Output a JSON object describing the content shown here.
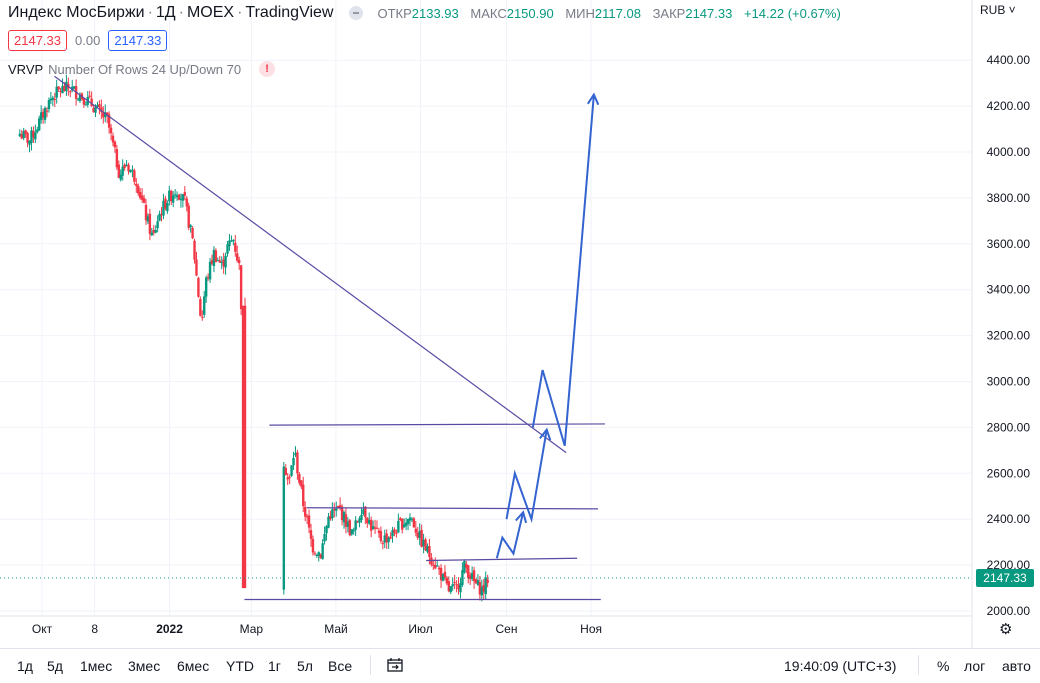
{
  "header": {
    "symbol": "Индекс МосБиржи",
    "interval": "1Д",
    "exchange": "MOEX",
    "source": "TradingView",
    "open_label": "ОТКР",
    "open": "2133.93",
    "high_label": "МАКС",
    "high": "2150.90",
    "low_label": "МИН",
    "low": "2117.08",
    "close_label": "ЗАКР",
    "close": "2147.33",
    "change": "+14.22 (+0.67%)",
    "price_box_sell": "2147.33",
    "spread": "0.00",
    "price_box_buy": "2147.33"
  },
  "indicator": {
    "name": "VRVP",
    "params": "Number Of Rows 24 Up/Down 70",
    "warning": "!"
  },
  "currency_menu": "RUB ˅",
  "last_price_label": "2147.33",
  "chart_data": {
    "type": "candlestick",
    "ylim": [
      2000,
      4500
    ],
    "y_ticks": [
      "2000.00",
      "2200.00",
      "2400.00",
      "2600.00",
      "2800.00",
      "3000.00",
      "3200.00",
      "3400.00",
      "3600.00",
      "3800.00",
      "4000.00",
      "4200.00",
      "4400.00"
    ],
    "x_ticks": [
      "Окт",
      "8",
      "2022",
      "Мар",
      "Май",
      "Июл",
      "Сен",
      "Ноя"
    ],
    "x_tick_dates": [
      "2021-10-01",
      "2021-11-08",
      "2022-01-01",
      "2022-03-01",
      "2022-05-01",
      "2022-07-01",
      "2022-09-01",
      "2022-11-01"
    ],
    "last_close": 2147.33,
    "close_path": [
      [
        "2021-09-15",
        4080
      ],
      [
        "2021-09-22",
        4050
      ],
      [
        "2021-09-29",
        4130
      ],
      [
        "2021-10-07",
        4230
      ],
      [
        "2021-10-14",
        4270
      ],
      [
        "2021-10-21",
        4280
      ],
      [
        "2021-10-28",
        4250
      ],
      [
        "2021-11-04",
        4220
      ],
      [
        "2021-11-10",
        4180
      ],
      [
        "2021-11-17",
        4140
      ],
      [
        "2021-11-26",
        3900
      ],
      [
        "2021-12-01",
        3950
      ],
      [
        "2021-12-08",
        3880
      ],
      [
        "2021-12-15",
        3720
      ],
      [
        "2021-12-20",
        3620
      ],
      [
        "2021-12-24",
        3720
      ],
      [
        "2021-12-30",
        3790
      ],
      [
        "2022-01-06",
        3840
      ],
      [
        "2022-01-12",
        3780
      ],
      [
        "2022-01-18",
        3600
      ],
      [
        "2022-01-24",
        3250
      ],
      [
        "2022-01-27",
        3430
      ],
      [
        "2022-02-02",
        3560
      ],
      [
        "2022-02-08",
        3500
      ],
      [
        "2022-02-11",
        3580
      ],
      [
        "2022-02-16",
        3620
      ],
      [
        "2022-02-21",
        3480
      ],
      [
        "2022-02-24",
        2780
      ],
      [
        "2022-03-24",
        2670
      ],
      [
        "2022-03-28",
        2550
      ],
      [
        "2022-04-01",
        2700
      ],
      [
        "2022-04-07",
        2480
      ],
      [
        "2022-04-14",
        2280
      ],
      [
        "2022-04-20",
        2250
      ],
      [
        "2022-04-26",
        2420
      ],
      [
        "2022-05-04",
        2440
      ],
      [
        "2022-05-13",
        2330
      ],
      [
        "2022-05-20",
        2460
      ],
      [
        "2022-05-27",
        2360
      ],
      [
        "2022-06-03",
        2310
      ],
      [
        "2022-06-10",
        2330
      ],
      [
        "2022-06-17",
        2380
      ],
      [
        "2022-06-24",
        2410
      ],
      [
        "2022-07-01",
        2310
      ],
      [
        "2022-07-07",
        2250
      ],
      [
        "2022-07-14",
        2180
      ],
      [
        "2022-07-21",
        2090
      ],
      [
        "2022-07-27",
        2100
      ],
      [
        "2022-08-02",
        2200
      ],
      [
        "2022-08-09",
        2120
      ],
      [
        "2022-08-15",
        2090
      ],
      [
        "2022-08-19",
        2147.33
      ]
    ],
    "drawings": [
      {
        "name": "trendline-descending",
        "points": [
          [
            "2021-10-10",
            4330
          ],
          [
            "2022-10-14",
            2690
          ]
        ]
      },
      {
        "name": "support-line-low",
        "points": [
          [
            "2022-02-24",
            2050
          ],
          [
            "2022-11-08",
            2050
          ]
        ]
      },
      {
        "name": "resistance-line-2220",
        "points": [
          [
            "2022-07-05",
            2220
          ],
          [
            "2022-10-22",
            2230
          ]
        ]
      },
      {
        "name": "resistance-line-2450",
        "points": [
          [
            "2022-04-10",
            2450
          ],
          [
            "2022-11-06",
            2445
          ]
        ]
      },
      {
        "name": "resistance-line-2810",
        "points": [
          [
            "2022-03-14",
            2810
          ],
          [
            "2022-11-11",
            2815
          ]
        ]
      }
    ],
    "forecast_path": [
      [
        "2022-08-25",
        2230
      ],
      [
        "2022-08-29",
        2320
      ],
      [
        "2022-09-06",
        2250
      ],
      [
        "2022-09-13",
        2430
      ],
      [
        "2022-09-01",
        2400
      ],
      [
        "2022-09-07",
        2600
      ],
      [
        "2022-09-19",
        2400
      ],
      [
        "2022-09-30",
        2790
      ],
      [
        "2022-09-20",
        2800
      ],
      [
        "2022-09-27",
        3050
      ],
      [
        "2022-10-13",
        2720
      ],
      [
        "2022-11-03",
        4250
      ]
    ]
  },
  "bottom_bar": {
    "timeframes": [
      "1д",
      "5д",
      "1мес",
      "3мес",
      "6мес",
      "YTD",
      "1г",
      "5л",
      "Все"
    ],
    "clock": "19:40:09 (UTC+3)",
    "percent": "%",
    "log": "лог",
    "auto": "авто"
  },
  "colors": {
    "up": "#089981",
    "down": "#f23645",
    "trend": "#5b4aa3",
    "forecast": "#3464d0"
  }
}
